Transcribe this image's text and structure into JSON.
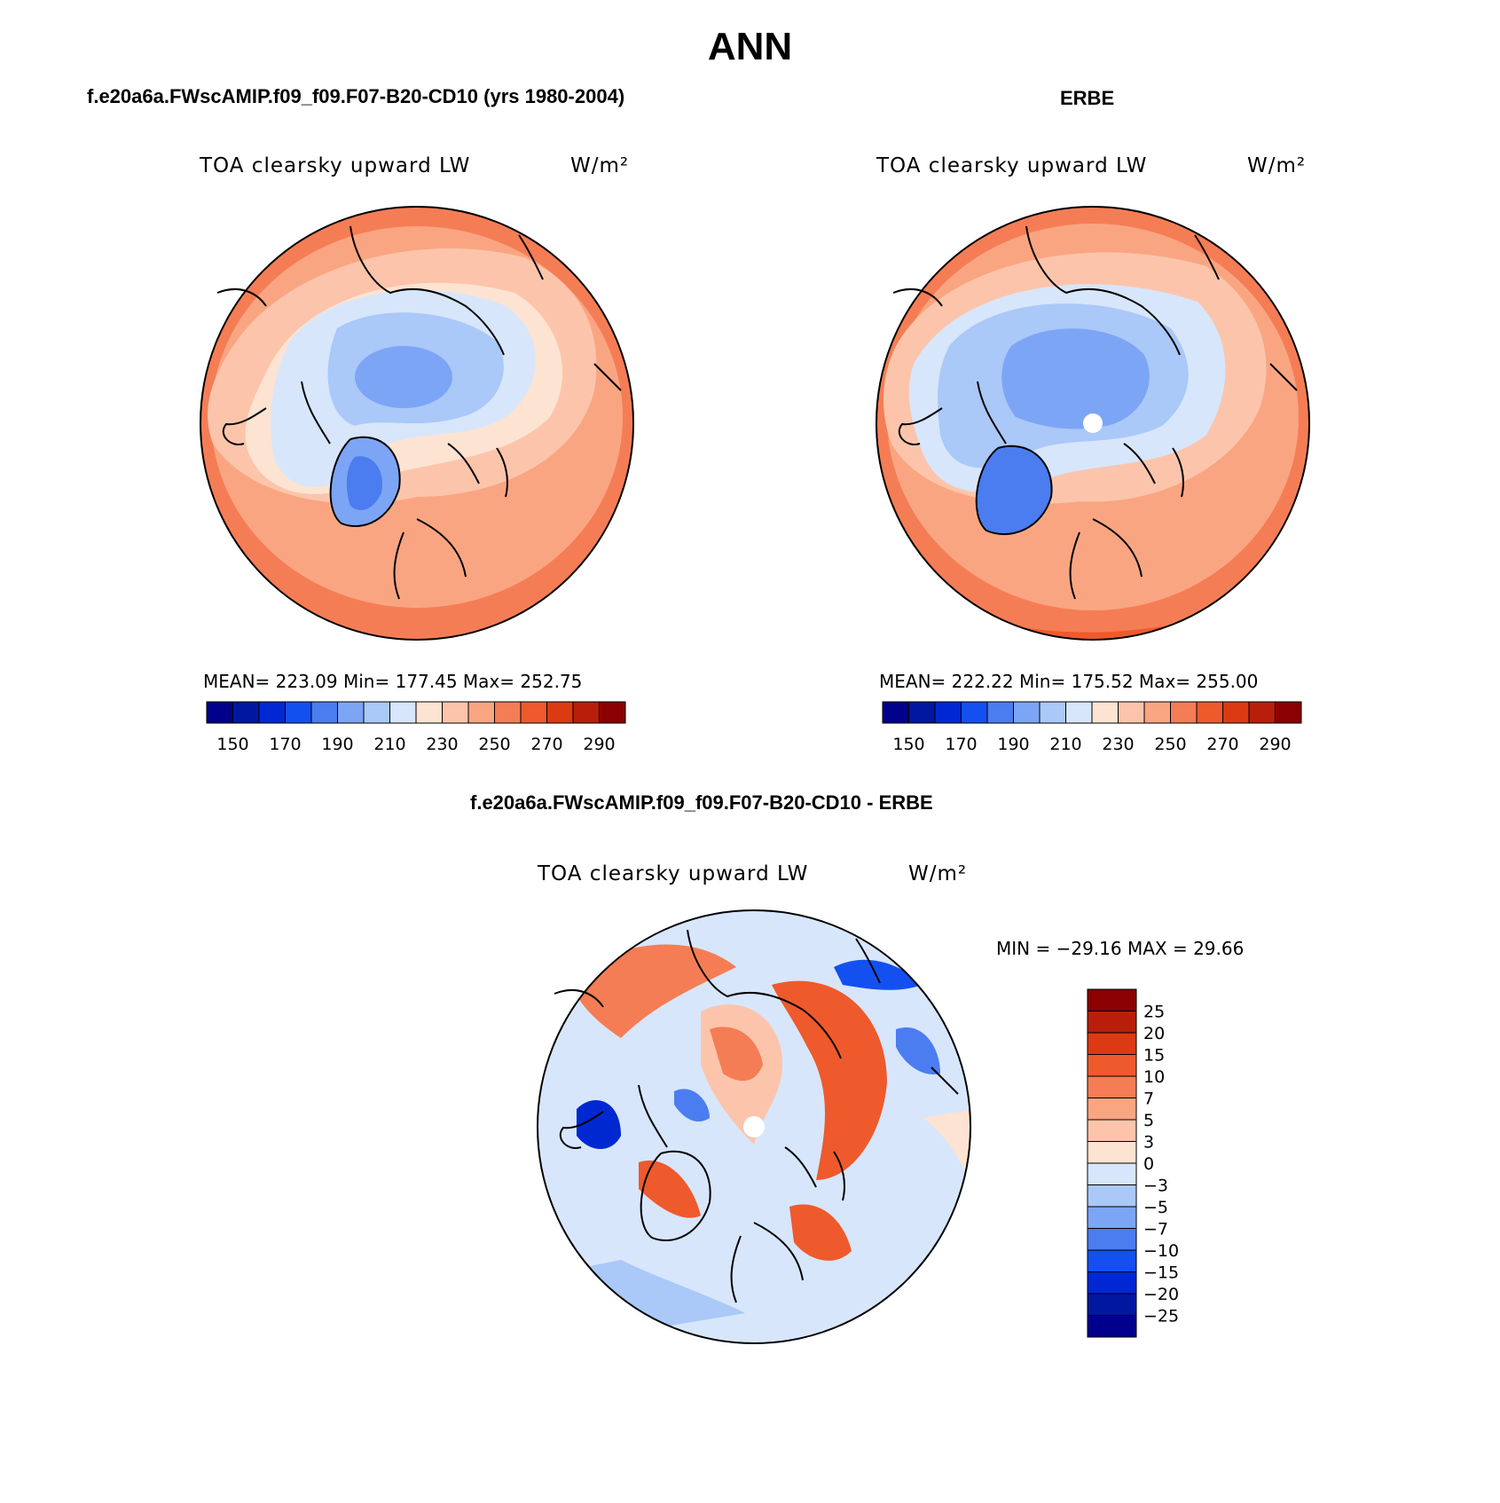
{
  "title": "ANN",
  "colors": {
    "seq": [
      "#00008c",
      "#0017a0",
      "#0028d2",
      "#1450f0",
      "#4b7df0",
      "#7da5f5",
      "#aac8f8",
      "#d7e6fb",
      "#fde3d2",
      "#fcc5ab",
      "#faa582",
      "#f57d55",
      "#ee5a2c",
      "#dc3a13",
      "#b91e0a",
      "#8b0000"
    ],
    "diff": [
      "#8b0000",
      "#b91e0a",
      "#dc3a13",
      "#ee5a2c",
      "#f57d55",
      "#faa582",
      "#fcc5ab",
      "#fde3d2",
      "#d7e6fb",
      "#aac8f8",
      "#7da5f5",
      "#4b7df0",
      "#1450f0",
      "#0028d2",
      "#0017a0",
      "#00008c"
    ]
  },
  "panels": {
    "model": {
      "title": "f.e20a6a.FWscAMIP.f09_f09.F07-B20-CD10 (yrs 1980-2004)",
      "variable": "TOA clearsky upward LW",
      "units": "W/m²",
      "stats": "MEAN= 223.09   Min= 177.45   Max= 252.75"
    },
    "obs": {
      "title": "ERBE",
      "variable": "TOA clearsky upward LW",
      "units": "W/m²",
      "stats": "MEAN= 222.22   Min= 175.52   Max= 255.00"
    },
    "diff": {
      "title": "f.e20a6a.FWscAMIP.f09_f09.F07-B20-CD10 - ERBE",
      "variable": "TOA clearsky upward LW",
      "units": "W/m²",
      "stats": "MIN = −29.16 MAX =  29.66"
    }
  },
  "chart_data": [
    {
      "type": "heatmap",
      "projection": "north polar stereographic",
      "title": "f.e20a6a.FWscAMIP.f09_f09.F07-B20-CD10 (yrs 1980-2004)",
      "variable": "TOA clearsky upward LW",
      "units": "W/m²",
      "mean": 223.09,
      "min": 177.45,
      "max": 252.75,
      "colorbar_levels": [
        140,
        150,
        160,
        170,
        180,
        190,
        200,
        210,
        220,
        230,
        240,
        250,
        260,
        270,
        280,
        290
      ],
      "colorbar_labels": [
        "150",
        "170",
        "190",
        "210",
        "230",
        "250",
        "270",
        "290"
      ]
    },
    {
      "type": "heatmap",
      "projection": "north polar stereographic",
      "title": "ERBE",
      "variable": "TOA clearsky upward LW",
      "units": "W/m²",
      "mean": 222.22,
      "min": 175.52,
      "max": 255.0,
      "colorbar_levels": [
        140,
        150,
        160,
        170,
        180,
        190,
        200,
        210,
        220,
        230,
        240,
        250,
        260,
        270,
        280,
        290
      ],
      "colorbar_labels": [
        "150",
        "170",
        "190",
        "210",
        "230",
        "250",
        "270",
        "290"
      ]
    },
    {
      "type": "heatmap",
      "projection": "north polar stereographic",
      "title": "f.e20a6a.FWscAMIP.f09_f09.F07-B20-CD10 - ERBE",
      "variable": "TOA clearsky upward LW",
      "units": "W/m²",
      "min": -29.16,
      "max": 29.66,
      "colorbar_levels": [
        25,
        20,
        15,
        10,
        7,
        5,
        3,
        0,
        -3,
        -5,
        -7,
        -10,
        -15,
        -20,
        -25
      ],
      "colorbar_labels": [
        "25",
        "20",
        "15",
        "10",
        "7",
        "5",
        "3",
        "0",
        "−3",
        "−5",
        "−7",
        "−10",
        "−15",
        "−20",
        "−25"
      ]
    }
  ]
}
